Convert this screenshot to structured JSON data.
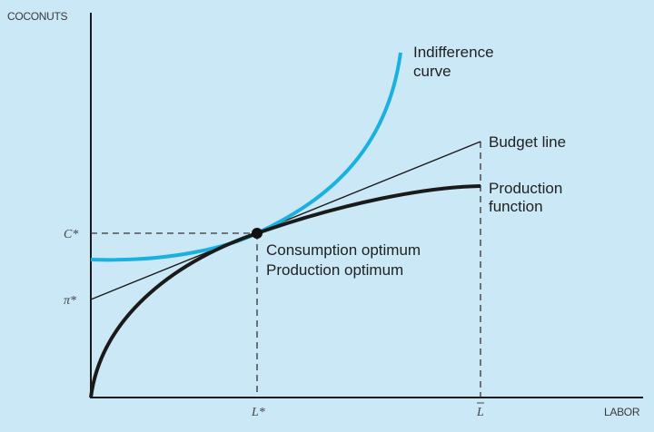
{
  "axes": {
    "y_title": "COCONUTS",
    "x_title": "LABOR"
  },
  "y_ticks": {
    "c_star": "C*",
    "pi_star": "π*"
  },
  "x_ticks": {
    "l_star": "L*",
    "l_bar": "L"
  },
  "curves": {
    "indifference": [
      "Indifference",
      "curve"
    ],
    "budget": "Budget line",
    "production": [
      "Production",
      "function"
    ]
  },
  "optimum": {
    "consumption": "Consumption optimum",
    "production": "Production optimum"
  },
  "colors": {
    "background": "#cbe8f6",
    "indifference_curve": "#1ab0e0",
    "production_function": "#1a1a1a",
    "budget_line": "#1a1a1a",
    "axes": "#1a1a1a",
    "dashed_guides": "#333333"
  }
}
